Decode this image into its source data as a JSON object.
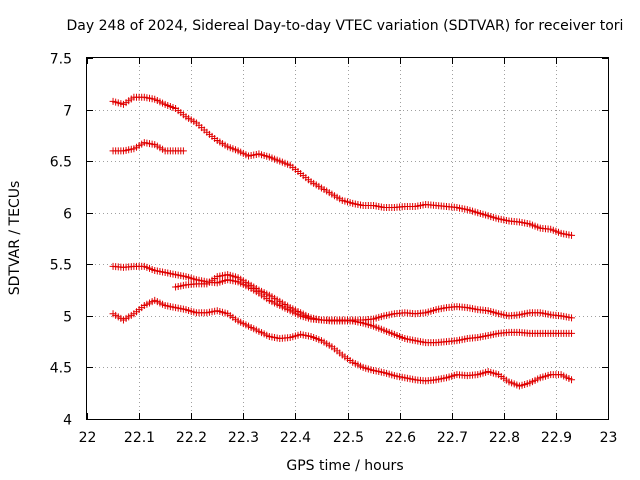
{
  "chart_data": {
    "type": "scatter",
    "title": "Day 248 of 2024, Sidereal Day-to-day VTEC variation (SDTVAR) for receiver tori",
    "xlabel": "GPS time / hours",
    "ylabel": "SDTVAR / TECUs",
    "xlim": [
      22,
      23
    ],
    "ylim": [
      4,
      7.5
    ],
    "xticks": [
      "22",
      "22.1",
      "22.2",
      "22.3",
      "22.4",
      "22.5",
      "22.6",
      "22.7",
      "22.8",
      "22.9",
      "23"
    ],
    "yticks": [
      "4",
      "4.5",
      "5",
      "5.5",
      "6",
      "6.5",
      "7",
      "7.5"
    ],
    "grid": true,
    "marker": "+",
    "color": "#e00000",
    "series": [
      {
        "name": "series-1",
        "x": [
          22.05,
          22.07,
          22.09,
          22.11,
          22.13,
          22.15,
          22.17,
          22.19,
          22.21,
          22.23,
          22.25,
          22.27,
          22.29,
          22.31,
          22.33,
          22.35,
          22.37,
          22.39,
          22.41,
          22.43,
          22.45,
          22.47,
          22.49,
          22.51,
          22.53,
          22.55,
          22.57,
          22.59,
          22.61,
          22.63,
          22.65,
          22.67,
          22.69,
          22.71,
          22.73,
          22.75,
          22.77,
          22.79,
          22.81,
          22.83,
          22.85,
          22.87,
          22.89,
          22.91,
          22.93
        ],
        "y": [
          7.08,
          7.05,
          7.12,
          7.12,
          7.1,
          7.05,
          7.01,
          6.93,
          6.87,
          6.78,
          6.7,
          6.64,
          6.6,
          6.55,
          6.57,
          6.54,
          6.5,
          6.46,
          6.38,
          6.3,
          6.24,
          6.18,
          6.12,
          6.09,
          6.07,
          6.07,
          6.05,
          6.05,
          6.06,
          6.06,
          6.08,
          6.07,
          6.06,
          6.05,
          6.03,
          6.0,
          5.97,
          5.94,
          5.92,
          5.91,
          5.89,
          5.85,
          5.84,
          5.8,
          5.78
        ]
      },
      {
        "name": "series-2",
        "x": [
          22.05,
          22.07,
          22.09,
          22.11,
          22.13,
          22.15,
          22.17,
          22.185
        ],
        "y": [
          6.6,
          6.6,
          6.62,
          6.68,
          6.66,
          6.6,
          6.6,
          6.6
        ]
      },
      {
        "name": "series-3",
        "x": [
          22.05,
          22.07,
          22.09,
          22.11,
          22.13,
          22.15,
          22.17,
          22.19,
          22.21,
          22.23,
          22.25,
          22.27,
          22.29,
          22.31,
          22.33,
          22.35,
          22.37,
          22.39,
          22.41,
          22.43,
          22.45,
          22.47,
          22.49,
          22.51,
          22.53,
          22.55,
          22.57,
          22.59,
          22.61,
          22.63,
          22.65,
          22.67,
          22.69,
          22.71,
          22.73,
          22.75,
          22.77,
          22.79,
          22.81,
          22.83,
          22.85,
          22.87,
          22.89,
          22.91,
          22.93
        ],
        "y": [
          5.48,
          5.47,
          5.48,
          5.48,
          5.44,
          5.42,
          5.4,
          5.38,
          5.35,
          5.33,
          5.32,
          5.35,
          5.33,
          5.28,
          5.22,
          5.15,
          5.1,
          5.05,
          5.0,
          4.97,
          4.96,
          4.96,
          4.96,
          4.96,
          4.96,
          4.97,
          5.0,
          5.02,
          5.03,
          5.02,
          5.03,
          5.06,
          5.08,
          5.09,
          5.08,
          5.06,
          5.05,
          5.02,
          5.0,
          5.01,
          5.03,
          5.03,
          5.01,
          5.0,
          4.98
        ]
      },
      {
        "name": "series-4",
        "x": [
          22.17,
          22.19,
          22.21,
          22.23,
          22.25,
          22.27,
          22.29,
          22.31,
          22.33,
          22.35,
          22.37,
          22.39,
          22.41,
          22.43,
          22.45,
          22.47,
          22.49,
          22.51,
          22.53,
          22.55,
          22.57,
          22.59,
          22.61,
          22.63,
          22.65,
          22.67,
          22.69,
          22.71,
          22.73,
          22.75,
          22.77,
          22.79,
          22.81,
          22.83,
          22.85,
          22.87,
          22.89,
          22.91,
          22.93
        ],
        "y": [
          5.28,
          5.3,
          5.31,
          5.31,
          5.38,
          5.4,
          5.37,
          5.31,
          5.25,
          5.2,
          5.14,
          5.08,
          5.03,
          4.98,
          4.96,
          4.95,
          4.95,
          4.95,
          4.93,
          4.9,
          4.86,
          4.82,
          4.78,
          4.76,
          4.74,
          4.74,
          4.75,
          4.76,
          4.78,
          4.79,
          4.81,
          4.83,
          4.84,
          4.84,
          4.83,
          4.83,
          4.83,
          4.83,
          4.83
        ]
      },
      {
        "name": "series-5",
        "x": [
          22.05,
          22.07,
          22.09,
          22.11,
          22.13,
          22.15,
          22.17,
          22.19,
          22.21,
          22.23,
          22.25,
          22.27,
          22.29,
          22.31,
          22.33,
          22.35,
          22.37,
          22.39,
          22.41,
          22.43,
          22.45,
          22.47,
          22.49,
          22.51,
          22.53,
          22.55,
          22.57,
          22.59,
          22.61,
          22.63,
          22.65,
          22.67,
          22.69,
          22.71,
          22.73,
          22.75,
          22.77,
          22.79,
          22.81,
          22.83,
          22.85,
          22.87,
          22.89,
          22.91,
          22.93
        ],
        "y": [
          5.02,
          4.96,
          5.02,
          5.1,
          5.15,
          5.1,
          5.08,
          5.06,
          5.03,
          5.03,
          5.05,
          5.02,
          4.95,
          4.9,
          4.85,
          4.8,
          4.78,
          4.79,
          4.82,
          4.8,
          4.76,
          4.7,
          4.62,
          4.55,
          4.5,
          4.47,
          4.45,
          4.42,
          4.4,
          4.38,
          4.37,
          4.38,
          4.4,
          4.43,
          4.42,
          4.43,
          4.46,
          4.43,
          4.36,
          4.32,
          4.35,
          4.4,
          4.43,
          4.43,
          4.38
        ]
      }
    ]
  }
}
